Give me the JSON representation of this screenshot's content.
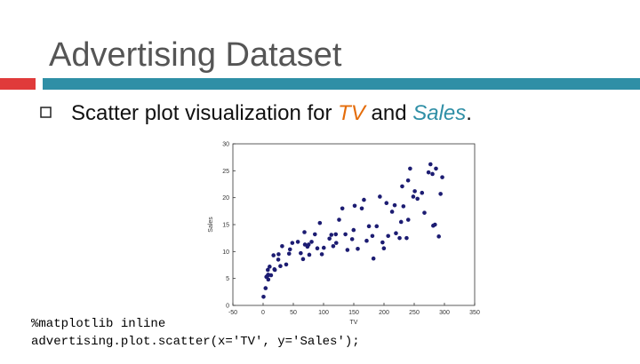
{
  "slide": {
    "title": "Advertising Dataset",
    "bullet": {
      "lead": "Scatter plot visualization for",
      "term1": "TV",
      "joiner": "and",
      "term2": "Sales",
      "tail": "."
    },
    "code": [
      "%matplotlib inline",
      "advertising.plot.scatter(x='TV', y='Sales');"
    ]
  },
  "chart_data": {
    "type": "scatter",
    "x_label": "TV",
    "y_label": "Sales",
    "color": "#1c1c72",
    "xlim": [
      -50,
      350
    ],
    "xticks": [
      -50,
      0,
      50,
      100,
      150,
      200,
      250,
      300,
      350
    ],
    "ylim": [
      0,
      30
    ],
    "yticks": [
      0,
      5,
      10,
      15,
      20,
      25,
      30
    ],
    "x": [
      0.7,
      4.1,
      5.4,
      7.3,
      7.8,
      8.4,
      8.6,
      10.8,
      13.1,
      17.2,
      18.7,
      19.4,
      25.1,
      25.6,
      28.6,
      31.5,
      38.2,
      43.0,
      44.5,
      48.3,
      57.5,
      62.3,
      66.1,
      68.4,
      69.2,
      73.4,
      75.3,
      76.4,
      80.2,
      85.7,
      89.7,
      93.9,
      97.2,
      100.4,
      109.8,
      112.9,
      116.0,
      120.2,
      121.0,
      125.7,
      131.1,
      136.2,
      139.5,
      147.3,
      149.7,
      151.5,
      156.6,
      163.3,
      166.8,
      171.3,
      175.1,
      180.8,
      182.6,
      187.9,
      193.2,
      197.6,
      199.8,
      204.1,
      206.9,
      213.4,
      217.7,
      219.8,
      225.8,
      228.3,
      230.1,
      232.1,
      237.4,
      239.9,
      240.1,
      243.2,
      248.4,
      250.9,
      255.4,
      262.9,
      266.9,
      273.7,
      276.9,
      280.2,
      281.4,
      284.3,
      286.0,
      290.7,
      293.6,
      296.4
    ],
    "values": [
      1.6,
      3.2,
      5.3,
      5.5,
      6.6,
      5.7,
      4.8,
      7.2,
      5.6,
      9.3,
      6.7,
      6.6,
      8.5,
      9.5,
      7.3,
      11.0,
      7.6,
      9.6,
      10.4,
      11.6,
      11.8,
      9.7,
      8.6,
      13.6,
      11.3,
      10.9,
      11.3,
      9.4,
      11.8,
      13.2,
      10.6,
      15.3,
      9.5,
      10.7,
      12.4,
      13.1,
      11.0,
      13.2,
      11.6,
      15.9,
      18.0,
      13.2,
      10.3,
      12.3,
      14.0,
      18.5,
      10.5,
      18.0,
      19.6,
      12.0,
      14.7,
      12.9,
      8.7,
      14.7,
      20.2,
      11.7,
      10.6,
      19.0,
      12.9,
      17.4,
      18.6,
      13.4,
      12.5,
      15.5,
      22.1,
      18.4,
      12.5,
      23.2,
      15.9,
      25.4,
      20.2,
      21.2,
      19.8,
      20.9,
      17.2,
      24.7,
      26.2,
      24.4,
      14.8,
      15.0,
      25.4,
      12.8,
      20.7,
      23.8
    ]
  }
}
